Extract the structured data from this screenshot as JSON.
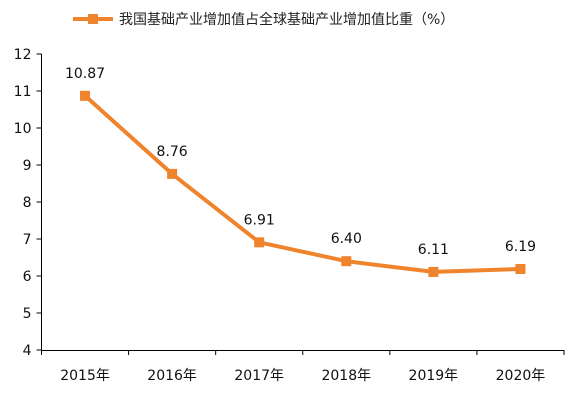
{
  "chart_data": {
    "type": "line",
    "title": "",
    "xlabel": "",
    "ylabel": "",
    "categories": [
      "2015年",
      "2016年",
      "2017年",
      "2018年",
      "2019年",
      "2020年"
    ],
    "series": [
      {
        "name": "我国基础产业增加值占全球基础产业增加值比重（%）",
        "values": [
          10.87,
          8.76,
          6.91,
          6.4,
          6.11,
          6.19
        ],
        "labels": [
          "10.87",
          "8.76",
          "6.91",
          "6.40",
          "6.11",
          "6.19"
        ],
        "color": "#f0842c"
      }
    ],
    "ylim": [
      4,
      12
    ],
    "yticks": [
      "4",
      "5",
      "6",
      "7",
      "8",
      "9",
      "10",
      "11",
      "12"
    ],
    "grid": false,
    "legend_position": "top-center"
  }
}
